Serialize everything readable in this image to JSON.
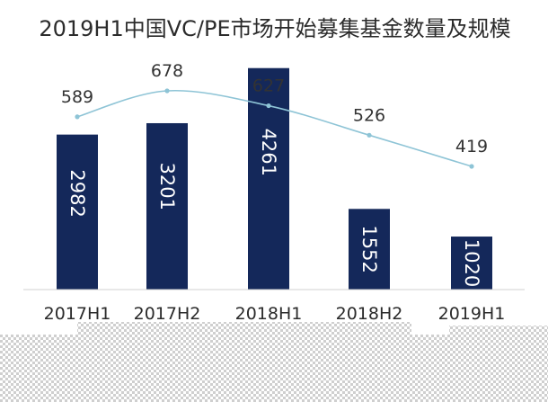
{
  "chart_data": {
    "type": "bar",
    "title": "2019H1中国VC/PE市场开始募集基金数量及规模",
    "categories": [
      "2017H1",
      "2017H2",
      "2018H1",
      "2018H2",
      "2019H1"
    ],
    "series": [
      {
        "type": "bar",
        "values": [
          2982,
          3201,
          4261,
          1552,
          1020
        ]
      },
      {
        "type": "line",
        "values": [
          589,
          678,
          627,
          526,
          419
        ]
      }
    ],
    "bar_ylim": [
      0,
      4600
    ],
    "line_ylim": [
      300,
      750
    ],
    "grid": false,
    "legend": "none",
    "colors": {
      "bar": "#14285a",
      "line": "#8ec4d6",
      "bar_text": "#ffffff"
    }
  }
}
